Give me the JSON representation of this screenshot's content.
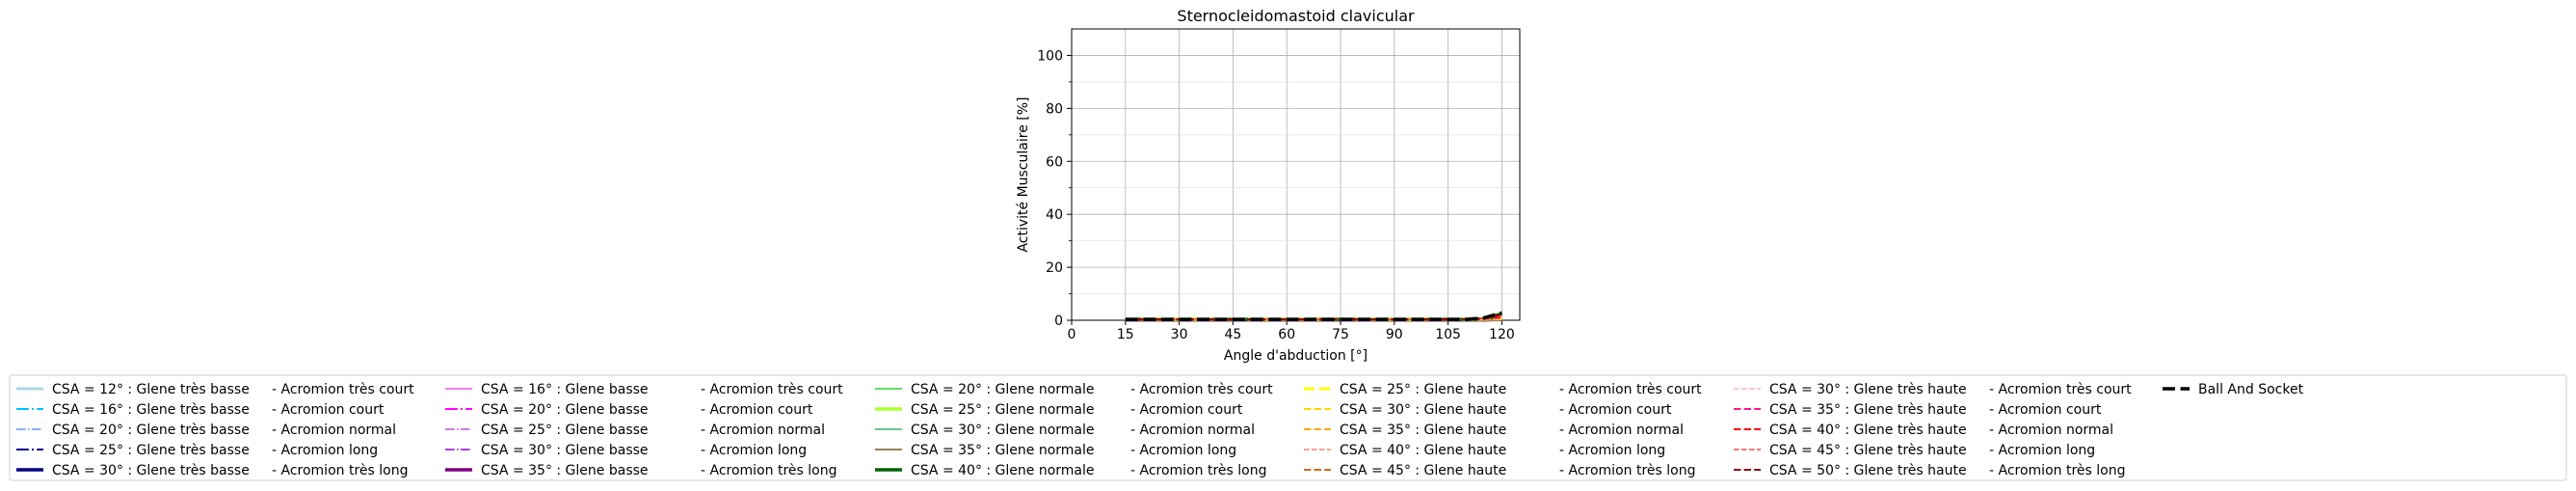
{
  "chart_data": {
    "type": "line",
    "title": "Sternocleidomastoid clavicular",
    "xlabel": "Angle d'abduction [°]",
    "ylabel": "Activité Musculaire [%]",
    "xlim": [
      0,
      125
    ],
    "ylim": [
      0,
      110
    ],
    "xticks": [
      0,
      15,
      30,
      45,
      60,
      75,
      90,
      105,
      120
    ],
    "yticks": [
      0,
      20,
      40,
      60,
      80,
      100
    ],
    "grid": true,
    "legend_position": "bottom",
    "x": [
      15,
      30,
      45,
      60,
      75,
      90,
      105,
      110,
      115,
      120
    ],
    "series": [
      {
        "name": "CSA = 12° : Glene très basse",
        "suffix": "-  Acromion très court",
        "color": "#add8e6",
        "dash": "solid",
        "width": 3,
        "values": [
          0.2,
          0.2,
          0.2,
          0.2,
          0.2,
          0.2,
          0.2,
          0.2,
          0.2,
          0.3
        ]
      },
      {
        "name": "CSA = 16° : Glene très basse",
        "suffix": "-  Acromion court",
        "color": "#00bfff",
        "dash": "dashdot",
        "width": 2,
        "values": [
          0.2,
          0.2,
          0.2,
          0.2,
          0.2,
          0.2,
          0.2,
          0.2,
          0.2,
          0.3
        ]
      },
      {
        "name": "CSA = 20° : Glene très basse",
        "suffix": "-  Acromion normal",
        "color": "#6495ed",
        "dash": "dashdot",
        "width": 1.5,
        "values": [
          0.2,
          0.2,
          0.2,
          0.2,
          0.2,
          0.2,
          0.2,
          0.2,
          0.2,
          0.3
        ]
      },
      {
        "name": "CSA = 25° : Glene très basse",
        "suffix": "-  Acromion long",
        "color": "#00008b",
        "dash": "dashdot",
        "width": 2,
        "values": [
          0.2,
          0.2,
          0.2,
          0.2,
          0.2,
          0.2,
          0.2,
          0.2,
          0.2,
          0.3
        ]
      },
      {
        "name": "CSA = 30° : Glene très basse",
        "suffix": "-  Acromion très long",
        "color": "#000080",
        "dash": "solid",
        "width": 3.5,
        "values": [
          0.2,
          0.2,
          0.2,
          0.2,
          0.2,
          0.2,
          0.2,
          0.2,
          0.2,
          0.3
        ]
      },
      {
        "name": "CSA = 16° : Glene basse",
        "suffix": "-  Acromion très court",
        "color": "#ee82ee",
        "dash": "solid",
        "width": 2,
        "values": [
          0.2,
          0.2,
          0.2,
          0.2,
          0.2,
          0.2,
          0.2,
          0.2,
          0.2,
          0.3
        ]
      },
      {
        "name": "CSA = 20° : Glene basse",
        "suffix": "-  Acromion court",
        "color": "#ff00ff",
        "dash": "dashdot",
        "width": 2,
        "values": [
          0.2,
          0.2,
          0.2,
          0.2,
          0.2,
          0.2,
          0.2,
          0.2,
          0.2,
          0.3
        ]
      },
      {
        "name": "CSA = 25° : Glene basse",
        "suffix": "-  Acromion normal",
        "color": "#ba55d3",
        "dash": "dashdot",
        "width": 1.5,
        "values": [
          0.2,
          0.2,
          0.2,
          0.2,
          0.2,
          0.2,
          0.2,
          0.2,
          0.2,
          0.3
        ]
      },
      {
        "name": "CSA = 30° : Glene basse",
        "suffix": "-  Acromion long",
        "color": "#9400d3",
        "dash": "dashdot",
        "width": 1.5,
        "values": [
          0.2,
          0.2,
          0.2,
          0.2,
          0.2,
          0.2,
          0.2,
          0.2,
          0.2,
          0.3
        ]
      },
      {
        "name": "CSA = 35° : Glene basse",
        "suffix": "-  Acromion très long",
        "color": "#800080",
        "dash": "solid",
        "width": 3.5,
        "values": [
          0.2,
          0.2,
          0.2,
          0.2,
          0.2,
          0.2,
          0.2,
          0.2,
          0.2,
          0.3
        ]
      },
      {
        "name": "CSA = 20° : Glene normale",
        "suffix": "-  Acromion très court",
        "color": "#32cd32",
        "dash": "solid",
        "width": 1.5,
        "values": [
          0.3,
          0.3,
          0.3,
          0.3,
          0.3,
          0.3,
          0.3,
          0.3,
          0.4,
          0.5
        ]
      },
      {
        "name": "CSA = 25° : Glene normale",
        "suffix": "-  Acromion court",
        "color": "#adff2f",
        "dash": "solid",
        "width": 3.5,
        "values": [
          0.3,
          0.3,
          0.3,
          0.3,
          0.3,
          0.3,
          0.3,
          0.3,
          0.4,
          0.5
        ]
      },
      {
        "name": "CSA = 30° : Glene normale",
        "suffix": "-  Acromion normal",
        "color": "#3cb371",
        "dash": "solid",
        "width": 1.5,
        "values": [
          0.3,
          0.3,
          0.3,
          0.3,
          0.3,
          0.3,
          0.3,
          0.3,
          0.4,
          0.5
        ]
      },
      {
        "name": "CSA = 35° : Glene normale",
        "suffix": "-  Acromion long",
        "color": "#6b5d1a",
        "dash": "solid",
        "width": 1.5,
        "values": [
          0.3,
          0.3,
          0.3,
          0.3,
          0.3,
          0.3,
          0.3,
          0.3,
          0.4,
          0.5
        ]
      },
      {
        "name": "CSA = 40° : Glene normale",
        "suffix": "-  Acromion très long",
        "color": "#006400",
        "dash": "solid",
        "width": 3.5,
        "values": [
          0.3,
          0.3,
          0.3,
          0.3,
          0.3,
          0.3,
          0.3,
          0.3,
          0.5,
          2.5
        ]
      },
      {
        "name": "CSA = 25° : Glene haute",
        "suffix": "-  Acromion très court",
        "color": "#ffff00",
        "dash": "dashed",
        "width": 3,
        "values": [
          0.3,
          0.3,
          0.3,
          0.3,
          0.3,
          0.3,
          0.3,
          0.3,
          0.4,
          0.6
        ]
      },
      {
        "name": "CSA = 30° : Glene haute",
        "suffix": "-  Acromion court",
        "color": "#ffd700",
        "dash": "dashed",
        "width": 2,
        "values": [
          0.3,
          0.3,
          0.3,
          0.3,
          0.3,
          0.3,
          0.3,
          0.3,
          0.4,
          0.6
        ]
      },
      {
        "name": "CSA = 35° : Glene haute",
        "suffix": "-  Acromion normal",
        "color": "#ffa500",
        "dash": "dashed",
        "width": 2,
        "values": [
          0.3,
          0.3,
          0.3,
          0.3,
          0.3,
          0.3,
          0.3,
          0.3,
          0.4,
          0.7
        ]
      },
      {
        "name": "CSA = 40° : Glene haute",
        "suffix": "-  Acromion long",
        "color": "#fa8072",
        "dash": "dashed",
        "width": 1.5,
        "values": [
          0.3,
          0.3,
          0.3,
          0.3,
          0.3,
          0.3,
          0.3,
          0.3,
          0.5,
          1.0
        ]
      },
      {
        "name": "CSA = 45° : Glene haute",
        "suffix": "-  Acromion très long",
        "color": "#d2691e",
        "dash": "dashed",
        "width": 2,
        "values": [
          0.3,
          0.3,
          0.3,
          0.3,
          0.3,
          0.3,
          0.3,
          0.3,
          0.5,
          1.2
        ]
      },
      {
        "name": "CSA = 30° : Glene très haute",
        "suffix": "-  Acromion très court",
        "color": "#ffb6c1",
        "dash": "dashed",
        "width": 1.5,
        "values": [
          0.3,
          0.3,
          0.3,
          0.3,
          0.3,
          0.3,
          0.3,
          0.3,
          0.4,
          0.8
        ]
      },
      {
        "name": "CSA = 35° : Glene très haute",
        "suffix": "-  Acromion court",
        "color": "#ff1493",
        "dash": "dashed",
        "width": 2,
        "values": [
          0.3,
          0.3,
          0.3,
          0.3,
          0.3,
          0.3,
          0.3,
          0.3,
          0.5,
          1.0
        ]
      },
      {
        "name": "CSA = 40° : Glene très haute",
        "suffix": "-  Acromion normal",
        "color": "#ff0000",
        "dash": "dashed",
        "width": 2,
        "values": [
          0.3,
          0.3,
          0.3,
          0.3,
          0.3,
          0.3,
          0.3,
          0.3,
          0.6,
          1.5
        ]
      },
      {
        "name": "CSA = 45° : Glene très haute",
        "suffix": "-  Acromion long",
        "color": "#e74c3c",
        "dash": "dashed",
        "width": 1.5,
        "values": [
          0.3,
          0.3,
          0.3,
          0.3,
          0.3,
          0.3,
          0.3,
          0.3,
          0.6,
          1.8
        ]
      },
      {
        "name": "CSA = 50° : Glene très haute",
        "suffix": "-  Acromion très long",
        "color": "#8b0000",
        "dash": "dashed",
        "width": 2,
        "values": [
          0.3,
          0.3,
          0.3,
          0.3,
          0.3,
          0.3,
          0.3,
          0.3,
          0.7,
          2.2
        ]
      },
      {
        "name": "Ball And Socket",
        "suffix": "",
        "color": "#000000",
        "dash": "dashed",
        "width": 3.5,
        "values": [
          0.3,
          0.3,
          0.3,
          0.3,
          0.3,
          0.3,
          0.3,
          0.3,
          0.9,
          2.8
        ]
      }
    ]
  }
}
